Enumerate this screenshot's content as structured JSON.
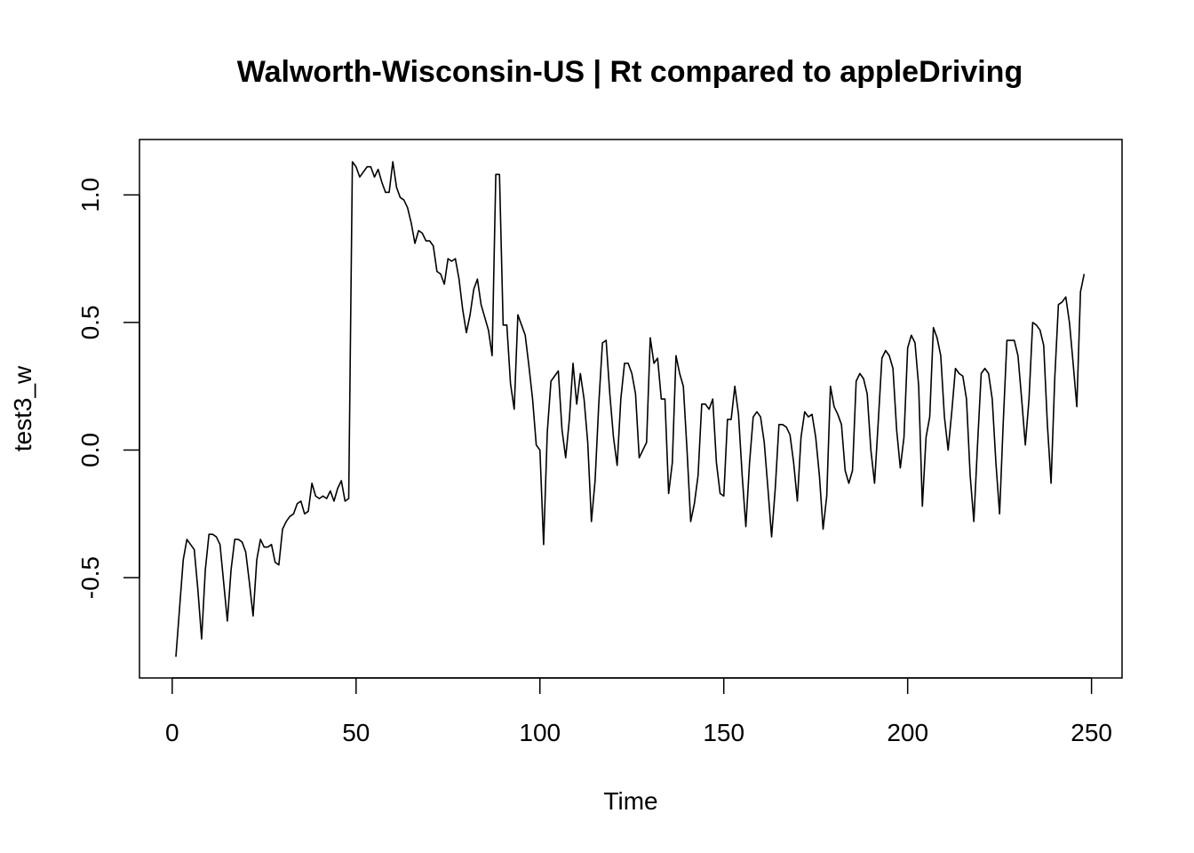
{
  "chart_data": {
    "type": "line",
    "title": "Walworth-Wisconsin-US | Rt compared to appleDriving",
    "xlabel": "Time",
    "ylabel": "test3_w",
    "xlim": [
      -8.9,
      258.3
    ],
    "ylim": [
      -0.893,
      1.217
    ],
    "x_ticks": [
      0,
      50,
      100,
      150,
      200,
      250
    ],
    "x_tick_labels": [
      "0",
      "50",
      "100",
      "150",
      "200",
      "250"
    ],
    "y_ticks": [
      -0.5,
      0.0,
      0.5,
      1.0
    ],
    "y_tick_labels": [
      "-0.5",
      "0.0",
      "0.5",
      "1.0"
    ],
    "grid": false,
    "series": [
      {
        "x_start": 1,
        "values": [
          -0.81,
          -0.62,
          -0.43,
          -0.35,
          -0.37,
          -0.39,
          -0.55,
          -0.74,
          -0.47,
          -0.33,
          -0.33,
          -0.34,
          -0.37,
          -0.52,
          -0.67,
          -0.47,
          -0.35,
          -0.35,
          -0.36,
          -0.4,
          -0.52,
          -0.65,
          -0.43,
          -0.35,
          -0.38,
          -0.38,
          -0.37,
          -0.44,
          -0.45,
          -0.31,
          -0.28,
          -0.26,
          -0.25,
          -0.21,
          -0.2,
          -0.25,
          -0.24,
          -0.13,
          -0.18,
          -0.19,
          -0.18,
          -0.19,
          -0.16,
          -0.2,
          -0.15,
          -0.12,
          -0.2,
          -0.19,
          1.13,
          1.11,
          1.07,
          1.09,
          1.11,
          1.11,
          1.07,
          1.1,
          1.05,
          1.01,
          1.01,
          1.13,
          1.03,
          0.99,
          0.98,
          0.95,
          0.89,
          0.81,
          0.86,
          0.85,
          0.82,
          0.82,
          0.8,
          0.7,
          0.69,
          0.65,
          0.75,
          0.74,
          0.75,
          0.67,
          0.55,
          0.46,
          0.53,
          0.63,
          0.67,
          0.57,
          0.52,
          0.47,
          0.37,
          1.08,
          1.08,
          0.49,
          0.49,
          0.26,
          0.16,
          0.53,
          0.49,
          0.45,
          0.33,
          0.2,
          0.02,
          0.0,
          -0.37,
          0.07,
          0.27,
          0.29,
          0.31,
          0.08,
          -0.03,
          0.12,
          0.34,
          0.18,
          0.3,
          0.2,
          0.03,
          -0.28,
          -0.12,
          0.18,
          0.42,
          0.43,
          0.22,
          0.05,
          -0.06,
          0.2,
          0.34,
          0.34,
          0.3,
          0.22,
          -0.03,
          0.0,
          0.03,
          0.44,
          0.34,
          0.36,
          0.2,
          0.2,
          -0.17,
          -0.05,
          0.37,
          0.3,
          0.25,
          0.0,
          -0.28,
          -0.21,
          -0.1,
          0.18,
          0.18,
          0.16,
          0.2,
          -0.05,
          -0.17,
          -0.18,
          0.12,
          0.12,
          0.25,
          0.14,
          -0.1,
          -0.3,
          -0.05,
          0.13,
          0.15,
          0.13,
          0.03,
          -0.15,
          -0.34,
          -0.15,
          0.1,
          0.1,
          0.09,
          0.06,
          -0.05,
          -0.2,
          0.05,
          0.15,
          0.13,
          0.14,
          0.05,
          -0.1,
          -0.31,
          -0.18,
          0.25,
          0.17,
          0.14,
          0.1,
          -0.08,
          -0.13,
          -0.08,
          0.27,
          0.3,
          0.28,
          0.22,
          0.0,
          -0.13,
          0.11,
          0.36,
          0.39,
          0.37,
          0.32,
          0.08,
          -0.07,
          0.05,
          0.4,
          0.45,
          0.42,
          0.25,
          -0.22,
          0.05,
          0.13,
          0.48,
          0.44,
          0.37,
          0.13,
          0.0,
          0.15,
          0.32,
          0.3,
          0.29,
          0.2,
          -0.1,
          -0.28,
          0.02,
          0.3,
          0.32,
          0.3,
          0.2,
          -0.05,
          -0.25,
          0.11,
          0.43,
          0.43,
          0.43,
          0.37,
          0.2,
          0.02,
          0.2,
          0.5,
          0.49,
          0.47,
          0.41,
          0.1,
          -0.13,
          0.28,
          0.57,
          0.58,
          0.6,
          0.5,
          0.34,
          0.17,
          0.62,
          0.69
        ]
      }
    ]
  }
}
